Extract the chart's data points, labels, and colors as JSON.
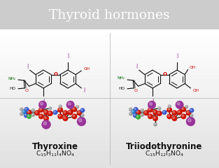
{
  "title": "Thyroid hormones",
  "title_bg": "#1c1c1c",
  "title_color": "#ffffff",
  "bg_gradient_top": "#d8d8d8",
  "bg_gradient_bot": "#e8e8e8",
  "label1": "Thyroxine",
  "formula1_parts": [
    [
      "C",
      "15"
    ],
    [
      "H",
      "11"
    ],
    [
      "I",
      "4"
    ],
    [
      "NO",
      ""
    ],
    [
      "4",
      ""
    ]
  ],
  "label2": "Triiodothyronine",
  "formula2_parts": [
    [
      "C",
      "15"
    ],
    [
      "H",
      "12"
    ],
    [
      "I",
      "3"
    ],
    [
      "NO",
      ""
    ],
    [
      "4",
      ""
    ]
  ],
  "label_color": "#111111",
  "struct_C": "#111111",
  "struct_O": "#cc0000",
  "struct_N": "#006600",
  "struct_I": "#993399",
  "atom_C": "#cc1100",
  "atom_H": "#999999",
  "atom_O": "#3355cc",
  "atom_N": "#2277cc",
  "atom_I": "#993399",
  "atom_Cl": "#33aa33",
  "divider": "#bbbbbb"
}
